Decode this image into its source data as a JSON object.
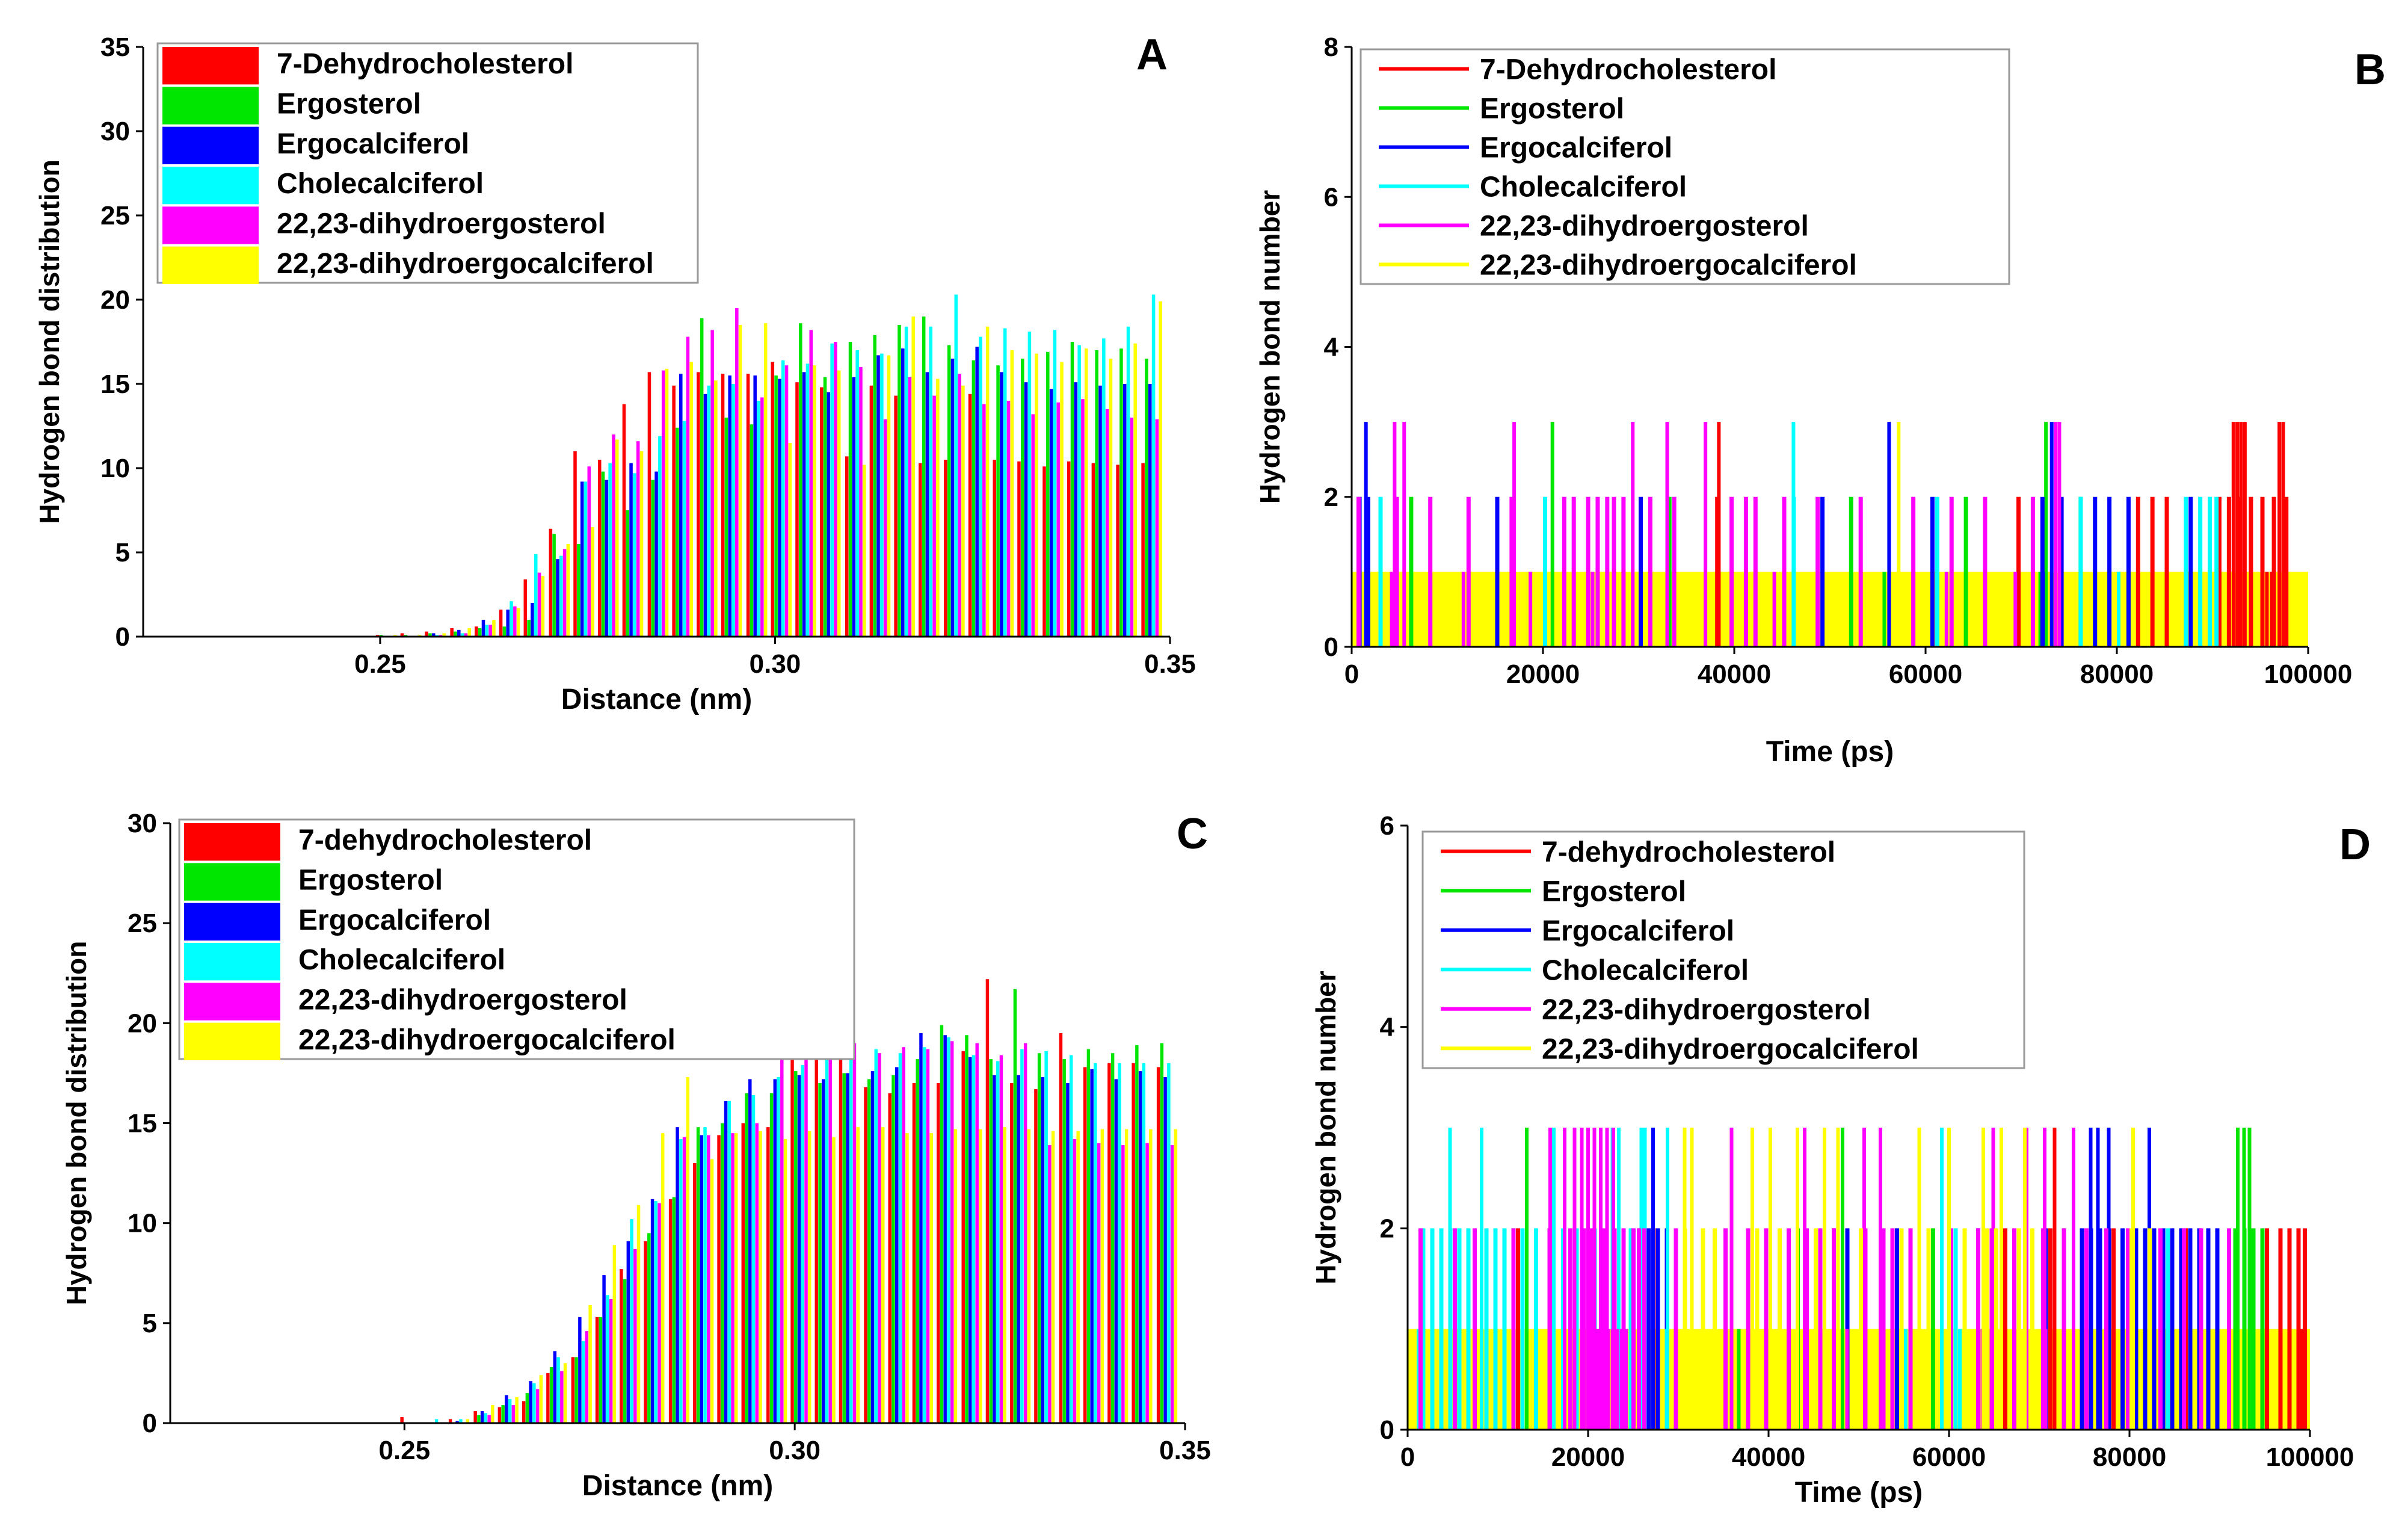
{
  "colors": {
    "7-dehydrocholesterol": "#ff0000",
    "ergosterol": "#00e600",
    "ergocalciferol": "#0000ff",
    "cholecalciferol": "#00ffff",
    "dihydroergosterol": "#ff00ff",
    "dihydroergocalciferol": "#ffff00"
  },
  "chart_data": [
    {
      "panel": "A",
      "type": "bar",
      "xlabel": "Distance (nm)",
      "ylabel": "Hydrogen bond distribution",
      "xlim": [
        0.22,
        0.35
      ],
      "ylim": [
        0,
        35
      ],
      "yticks": [
        0,
        5,
        10,
        15,
        20,
        25,
        30,
        35
      ],
      "xticks": [
        0.25,
        0.3,
        0.35
      ],
      "xtick_labels": [
        "0.25",
        "0.30",
        "0.35"
      ],
      "legend": "top-left",
      "x": [
        0.2508,
        0.2539,
        0.257,
        0.2602,
        0.2633,
        0.2664,
        0.2695,
        0.2727,
        0.2758,
        0.2789,
        0.282,
        0.2852,
        0.2883,
        0.2914,
        0.2945,
        0.2977,
        0.3008,
        0.3039,
        0.307,
        0.3102,
        0.3133,
        0.3164,
        0.3195,
        0.3227,
        0.3258,
        0.3289,
        0.332,
        0.3352,
        0.3383,
        0.3414,
        0.3445,
        0.3477
      ],
      "series": [
        {
          "name": "7-Dehydrocholesterol",
          "key": "7-dehydrocholesterol",
          "values": [
            0.1,
            0.2,
            0.3,
            0.5,
            0.6,
            1.6,
            3.4,
            6.4,
            11.0,
            10.5,
            13.8,
            15.7,
            14.9,
            15.7,
            15.6,
            15.6,
            16.3,
            15.1,
            14.8,
            10.7,
            14.9,
            14.3,
            10.3,
            10.5,
            14.4,
            10.5,
            10.4,
            10.1,
            10.4,
            10.3,
            10.2,
            10.3
          ]
        },
        {
          "name": "Ergosterol",
          "key": "ergosterol",
          "values": [
            0.1,
            0.1,
            0.2,
            0.3,
            0.5,
            0.6,
            1.0,
            6.1,
            5.5,
            9.8,
            7.5,
            9.3,
            12.4,
            18.9,
            13.0,
            12.6,
            15.5,
            18.6,
            15.4,
            17.5,
            17.9,
            18.5,
            19.0,
            17.3,
            16.4,
            16.1,
            16.5,
            16.9,
            17.5,
            17.0,
            17.1,
            16.5
          ]
        },
        {
          "name": "Ergocalciferol",
          "key": "ergocalciferol",
          "values": [
            0,
            0,
            0.2,
            0.4,
            1.0,
            1.6,
            2.0,
            4.6,
            9.2,
            9.3,
            10.3,
            9.8,
            15.6,
            14.4,
            15.5,
            15.5,
            15.3,
            15.7,
            14.5,
            15.4,
            16.7,
            17.1,
            15.7,
            16.5,
            17.2,
            15.7,
            15.1,
            14.7,
            15.1,
            14.9,
            15.0,
            15.0
          ]
        },
        {
          "name": "Cholecalciferol",
          "key": "cholecalciferol",
          "values": [
            0,
            0,
            0.1,
            0.2,
            0.7,
            2.1,
            4.9,
            4.8,
            9.2,
            10.3,
            9.7,
            11.9,
            12.8,
            14.9,
            15.0,
            14.0,
            16.4,
            16.2,
            17.4,
            17.0,
            16.8,
            18.4,
            18.4,
            20.3,
            17.8,
            18.3,
            18.1,
            18.2,
            17.3,
            17.7,
            18.4,
            20.3
          ]
        },
        {
          "name": "22,23-dihydroergosterol",
          "key": "dihydroergosterol",
          "values": [
            0,
            0,
            0.1,
            0.2,
            0.7,
            1.8,
            3.8,
            5.2,
            10.1,
            12.0,
            11.6,
            15.8,
            17.8,
            18.2,
            19.5,
            14.2,
            16.1,
            18.2,
            17.5,
            16.0,
            12.9,
            15.4,
            14.3,
            15.6,
            13.8,
            14.0,
            13.2,
            13.9,
            14.1,
            13.5,
            13.0,
            12.9
          ]
        },
        {
          "name": "22,23-dihydroergocalciferol",
          "key": "dihydroergocalciferol",
          "values": [
            0.1,
            0.1,
            0.2,
            0.5,
            1.0,
            1.7,
            3.6,
            5.5,
            6.5,
            11.7,
            11.0,
            15.9,
            16.3,
            15.2,
            18.5,
            18.6,
            11.5,
            16.1,
            15.8,
            10.2,
            16.7,
            19.0,
            15.3,
            14.9,
            18.4,
            17.0,
            16.8,
            16.3,
            17.1,
            16.5,
            17.4,
            19.9
          ]
        }
      ]
    },
    {
      "panel": "B",
      "type": "step",
      "xlabel": "Time (ps)",
      "ylabel": "Hydrogen bond number",
      "xlim": [
        0,
        100000
      ],
      "ylim": [
        0,
        8
      ],
      "yticks": [
        0,
        2,
        4,
        6,
        8
      ],
      "xticks": [
        0,
        20000,
        40000,
        60000,
        80000,
        100000
      ],
      "legend": "top-left",
      "base": {
        "key": "dihydroergocalciferol",
        "level": 1
      },
      "series": [
        {
          "name": "7-Dehydrocholesterol",
          "key": "7-dehydrocholesterol",
          "spikes2": [
            38000,
            69500,
            82000,
            83500,
            85000,
            90500,
            91500,
            92500,
            93800,
            95000,
            96200,
            97500
          ],
          "spikes3": [
            38200,
            92000,
            92400,
            92800,
            93200,
            96800,
            97200
          ],
          "spikes0": [
            95500,
            96000
          ]
        },
        {
          "name": "Ergosterol",
          "key": "ergosterol",
          "spikes2": [
            6000,
            33000,
            52000,
            64000,
            76000
          ],
          "spikes3": [
            20800,
            72400
          ],
          "spikes0": [
            55500,
            71800
          ]
        },
        {
          "name": "Ergocalciferol",
          "key": "ergocalciferol",
          "spikes2": [
            600,
            1500,
            15000,
            30000,
            49000,
            60500,
            72000,
            74000,
            77500,
            79000,
            81000,
            87500
          ],
          "spikes3": [
            1300,
            56000,
            73000
          ],
          "spikes0": [
            72100
          ]
        },
        {
          "name": "Cholecalciferol",
          "key": "cholecalciferol",
          "spikes2": [
            2800,
            20000,
            46000,
            61000,
            76000,
            87000,
            88500,
            89500,
            90200
          ],
          "spikes3": [
            46000
          ],
          "spikes0": [
            80000
          ]
        },
        {
          "name": "22,23-dihydroergosterol",
          "key": "dihydroergosterol",
          "spikes2": [
            500,
            4500,
            8000,
            12000,
            16500,
            22000,
            23000,
            24500,
            25500,
            26500,
            27200,
            28200,
            31000,
            33500,
            39500,
            41000,
            42000,
            45000,
            48500,
            53000,
            58500,
            62500,
            66000,
            71000
          ],
          "spikes3": [
            4300,
            5300,
            16800,
            29200,
            32800,
            36800,
            73400,
            73800
          ],
          "spikes0": [
            4000,
            11500,
            18500,
            25000,
            44000,
            62000,
            69200
          ]
        },
        {
          "name": "22,23-dihydroergocalciferol",
          "key": "dihydroergocalciferol",
          "spikes2": [],
          "spikes3": [
            57000
          ],
          "spikes0": []
        }
      ]
    },
    {
      "panel": "C",
      "type": "bar",
      "xlabel": "Distance (nm)",
      "ylabel": "Hydrogen bond distribution",
      "xlim": [
        0.22,
        0.35
      ],
      "ylim": [
        0,
        30
      ],
      "yticks": [
        0,
        5,
        10,
        15,
        20,
        25,
        30
      ],
      "xticks": [
        0.25,
        0.3,
        0.35
      ],
      "xtick_labels": [
        "0.25",
        "0.30",
        "0.35"
      ],
      "legend": "top-left",
      "x": [
        0.2508,
        0.2539,
        0.257,
        0.2602,
        0.2633,
        0.2664,
        0.2695,
        0.2727,
        0.2758,
        0.2789,
        0.282,
        0.2852,
        0.2883,
        0.2914,
        0.2945,
        0.2977,
        0.3008,
        0.3039,
        0.307,
        0.3102,
        0.3133,
        0.3164,
        0.3195,
        0.3227,
        0.3258,
        0.3289,
        0.332,
        0.3352,
        0.3383,
        0.3414,
        0.3445,
        0.3477
      ],
      "series": [
        {
          "name": "7-dehydrocholesterol",
          "key": "7-dehydrocholesterol",
          "values": [
            0.3,
            0,
            0.2,
            0.6,
            0.8,
            1.1,
            2.5,
            3.3,
            5.3,
            7.7,
            9.1,
            11.2,
            13.0,
            14.4,
            15.0,
            14.8,
            18.6,
            18.7,
            18.5,
            16.8,
            16.5,
            17.0,
            17.0,
            18.6,
            22.2,
            17.0,
            16.7,
            19.5,
            17.8,
            18.0,
            18.0,
            17.8
          ]
        },
        {
          "name": "Ergosterol",
          "key": "ergosterol",
          "values": [
            0,
            0,
            0,
            0.4,
            0.9,
            1.5,
            2.8,
            3.3,
            5.3,
            7.2,
            9.5,
            11.3,
            14.8,
            15.0,
            16.5,
            16.5,
            17.6,
            17.0,
            17.5,
            17.2,
            17.4,
            18.2,
            19.9,
            19.4,
            18.2,
            21.7,
            18.5,
            18.2,
            18.7,
            18.5,
            18.9,
            19.0
          ]
        },
        {
          "name": "Ergocalciferol",
          "key": "ergocalciferol",
          "values": [
            0,
            0,
            0.1,
            0.6,
            1.4,
            2.1,
            3.6,
            5.3,
            7.4,
            9.1,
            11.2,
            14.8,
            14.4,
            16.1,
            17.2,
            17.2,
            17.4,
            17.2,
            17.5,
            17.6,
            17.8,
            19.5,
            19.4,
            18.3,
            17.4,
            17.4,
            17.3,
            17.0,
            17.7,
            17.2,
            17.6,
            17.3
          ]
        },
        {
          "name": "Cholecalciferol",
          "key": "cholecalciferol",
          "values": [
            0,
            0.2,
            0.2,
            0.5,
            1.2,
            2.0,
            3.3,
            4.1,
            6.4,
            10.2,
            11.1,
            14.2,
            14.8,
            16.1,
            16.4,
            17.3,
            17.9,
            18.4,
            19.4,
            18.7,
            18.5,
            18.8,
            19.3,
            18.4,
            18.1,
            18.7,
            18.6,
            18.4,
            18.0,
            18.0,
            18.0,
            18.0
          ]
        },
        {
          "name": "22,23-dihydroergosterol",
          "key": "dihydroergosterol",
          "values": [
            0,
            0,
            0,
            0.4,
            0.9,
            1.7,
            2.6,
            4.6,
            6.2,
            8.7,
            11.0,
            14.3,
            14.4,
            14.5,
            15.0,
            18.7,
            19.5,
            19.5,
            19.0,
            18.5,
            18.8,
            18.7,
            19.1,
            19.0,
            18.4,
            19.0,
            13.9,
            14.2,
            14.0,
            13.9,
            14.0,
            13.9
          ]
        },
        {
          "name": "22,23-dihydroergocalciferol",
          "key": "dihydroergocalciferol",
          "values": [
            0,
            0,
            0.2,
            0.9,
            1.3,
            2.4,
            3.0,
            5.9,
            8.9,
            10.9,
            14.5,
            17.3,
            13.2,
            14.5,
            14.6,
            14.2,
            14.6,
            14.3,
            14.8,
            14.8,
            14.5,
            14.5,
            14.7,
            14.7,
            14.8,
            14.7,
            14.6,
            14.6,
            14.7,
            14.7,
            14.7,
            14.7
          ]
        }
      ]
    },
    {
      "panel": "D",
      "type": "step",
      "xlabel": "Time (ps)",
      "ylabel": "Hydrogen bond number",
      "xlim": [
        0,
        100000
      ],
      "ylim": [
        0,
        6
      ],
      "yticks": [
        0,
        2,
        4,
        6
      ],
      "xticks": [
        0,
        20000,
        40000,
        60000,
        80000,
        100000
      ],
      "legend": "top-left",
      "base": {
        "key": "dihydroergocalciferol",
        "level": 1
      },
      "series": [
        {
          "name": "7-dehydrocholesterol",
          "key": "7-dehydrocholesterol",
          "spikes2": [
            12000,
            27000,
            47000,
            66000,
            71000,
            78000,
            86000,
            95000,
            96500,
            97500,
            98500,
            99200
          ],
          "spikes3": [
            71500
          ],
          "spikes0": [
            98800
          ]
        },
        {
          "name": "Ergosterol",
          "key": "ergosterol",
          "spikes2": [
            11500,
            22500,
            43000,
            58000,
            72500,
            91500,
            92500,
            93500,
            94500
          ],
          "spikes3": [
            13000,
            48000,
            91800,
            92500,
            93100
          ],
          "spikes0": [
            36500
          ]
        },
        {
          "name": "Ergocalciferol",
          "key": "ergocalciferol",
          "spikes2": [
            26500,
            27500,
            28500,
            48500,
            54000,
            63000,
            70500,
            74500,
            75500,
            76500,
            77500,
            79000,
            80500,
            81500,
            82500,
            83500,
            84500,
            85500,
            86500,
            87500,
            88500,
            89500
          ],
          "spikes3": [
            27000,
            75500,
            76300,
            77500,
            82000
          ],
          "spikes0": []
        },
        {
          "name": "Cholecalciferol",
          "key": "cholecalciferol",
          "spikes2": [
            1500,
            2500,
            3500,
            4500,
            5500,
            6500,
            8500,
            9500,
            10500,
            12500,
            14000,
            15500,
            17000,
            18500,
            20500,
            24500,
            25500,
            60500,
            84000
          ],
          "spikes3": [
            4500,
            8000,
            16000,
            22500,
            23200,
            25700,
            26100,
            28600,
            59000
          ],
          "spikes0": [
            1000,
            3500,
            8500,
            12500,
            28500,
            55000,
            61000
          ]
        },
        {
          "name": "22,23-dihydroergosterol",
          "key": "dihydroergosterol",
          "spikes2": [
            1200,
            5000,
            7200,
            11500,
            15500,
            17800,
            19300,
            20200,
            21500,
            22700,
            23700,
            24800,
            25400,
            26000,
            29500,
            35000,
            37500,
            39500,
            42000,
            44000,
            45500,
            47000,
            50500,
            52500,
            53500,
            55500,
            60000,
            63000,
            64500,
            67000,
            68200,
            70200,
            72500,
            75000,
            77200,
            79600,
            83200,
            85800,
            87700,
            90800
          ],
          "spikes3": [
            15600,
            17200,
            18300,
            19100,
            19800,
            20500,
            21200,
            21900,
            22600,
            35700,
            43800,
            50400,
            52200,
            64700,
            68400,
            70400,
            73600
          ],
          "spikes0": [
            20600,
            21000,
            21400,
            22000,
            22500,
            23000,
            23500,
            24000,
            39500,
            48500,
            63500,
            70500
          ]
        },
        {
          "name": "22,23-dihydroergocalciferol",
          "key": "dihydroergocalciferol",
          "spikes2": [
            30500,
            32500,
            33800,
            38500,
            41000,
            45000,
            50000,
            54500,
            57500,
            61500,
            64000,
            65000,
            67500,
            69000,
            80000,
            82000
          ],
          "spikes3": [
            30500,
            31300,
            38000,
            40000,
            43000,
            46000,
            47500,
            56500,
            59800,
            63600,
            65600,
            68200,
            80200
          ],
          "spikes0": []
        }
      ]
    }
  ]
}
